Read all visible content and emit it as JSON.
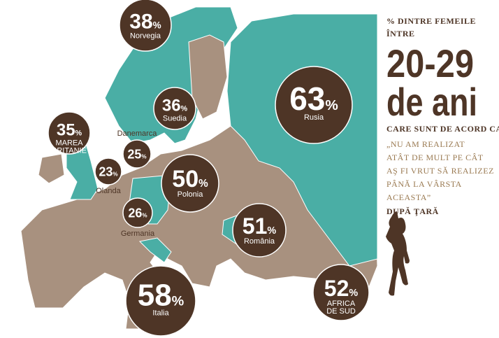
{
  "unit": "%",
  "bubbles": [
    {
      "value": 38,
      "label": [
        "Norvegia"
      ]
    },
    {
      "value": 36,
      "label": [
        "Suedia"
      ]
    },
    {
      "value": 63,
      "label": [
        "Rusia"
      ]
    },
    {
      "value": 35,
      "label": [
        "MAREA",
        "BRITANIE"
      ]
    },
    {
      "value": 25,
      "label": [
        "Danemarca"
      ]
    },
    {
      "value": 23,
      "label": [
        "Olanda"
      ]
    },
    {
      "value": 50,
      "label": [
        "Polonia"
      ]
    },
    {
      "value": 26,
      "label": [
        "Germania"
      ]
    },
    {
      "value": 51,
      "label": [
        "România"
      ]
    },
    {
      "value": 58,
      "label": [
        "Italia"
      ]
    },
    {
      "value": 52,
      "label": [
        "AFRICA",
        "DE SUD"
      ]
    }
  ],
  "side": {
    "intro": [
      "% DINTRE FEMEILE",
      "ÎNTRE"
    ],
    "headline": [
      "20-29",
      "de ani"
    ],
    "lead": "CARE SUNT DE ACORD CA",
    "quote": [
      "„NU AM REALIZAT",
      "ATÂT DE MULT PE CÂT",
      "AŞ FI VRUT SĂ REALIZEZ",
      "PÂNĂ LA VÂRSTA",
      "ACEASTA”"
    ],
    "footer": "DUPĂ ŢARĂ"
  }
}
